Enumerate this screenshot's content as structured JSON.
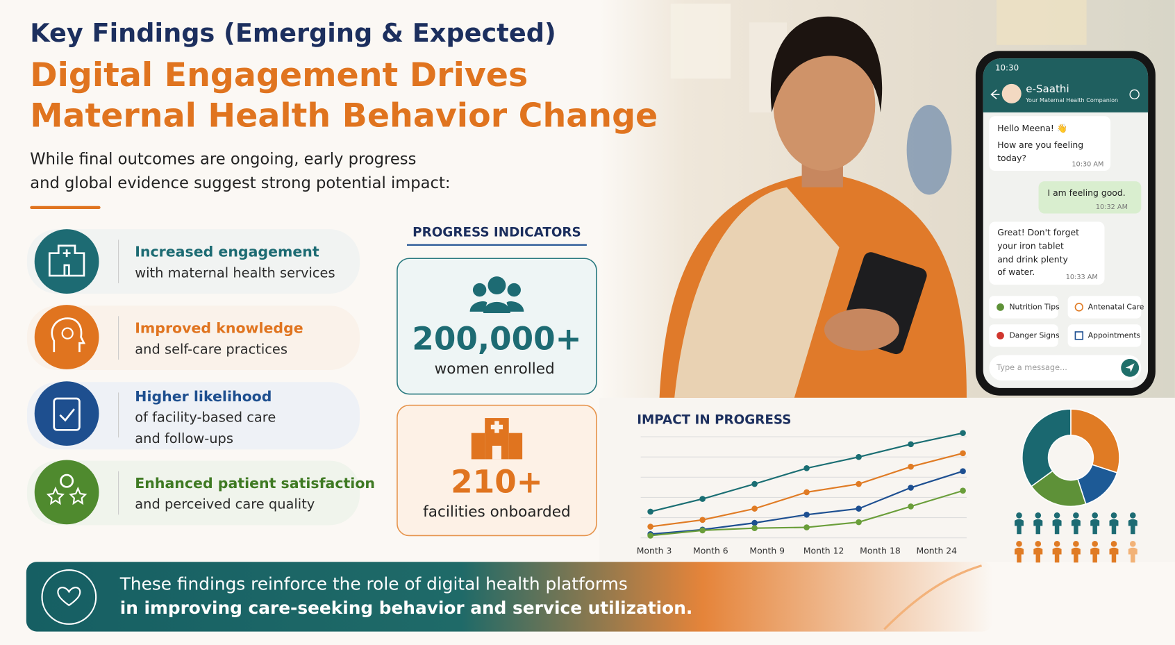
{
  "header": {
    "eyebrow": "Key Findings (Emerging & Expected)",
    "title_lines": [
      "Digital Engagement Drives",
      "Maternal Health Behavior Change"
    ],
    "intro_lines": [
      "While final outcomes are ongoing, early progress",
      "and global evidence suggest strong potential impact:"
    ]
  },
  "findings": [
    {
      "title": "Increased engagement",
      "lines": [
        "with maternal health services"
      ]
    },
    {
      "title": "Improved knowledge",
      "lines": [
        "and self-care practices"
      ]
    },
    {
      "title": "Higher likelihood",
      "lines": [
        "of facility-based care",
        "and follow-ups"
      ]
    },
    {
      "title": "Enhanced patient satisfaction",
      "lines": [
        "and perceived care quality"
      ]
    }
  ],
  "progress": {
    "title": "PROGRESS INDICATORS",
    "cards": [
      {
        "value": "200,000+",
        "label": "women enrolled"
      },
      {
        "value": "210+",
        "label": "facilities onboarded"
      }
    ]
  },
  "phone": {
    "time": "10:30",
    "app": "e-Saathi",
    "tagline": "Your Maternal Health Companion",
    "messages": [
      {
        "lines": [
          "Hello Meena! 👋",
          "How are you feeling",
          "today?"
        ],
        "time": "10:30 AM"
      },
      {
        "lines": [
          "I am feeling good."
        ],
        "time": "10:32 AM"
      },
      {
        "lines": [
          "Great! Don't forget",
          "your iron tablet",
          "and drink plenty",
          "of water."
        ],
        "time": "10:33 AM"
      }
    ],
    "quick_replies": [
      "Nutrition Tips",
      "Antenatal Care",
      "Danger Signs",
      "Appointments"
    ],
    "input_placeholder": "Type a message..."
  },
  "chart_data": [
    {
      "type": "line",
      "title": "IMPACT IN PROGRESS",
      "categories": [
        "Month 3",
        "Month 6",
        "Month 9",
        "Month 12",
        "Month 18",
        "Month 24",
        null
      ],
      "ylim": [
        0,
        150
      ],
      "series": [
        {
          "color": "#1a6e73",
          "values": [
            37,
            54,
            74,
            95,
            110,
            127,
            142
          ]
        },
        {
          "color": "#e07b24",
          "values": [
            17,
            26,
            41,
            63,
            74,
            97,
            115
          ]
        },
        {
          "color": "#1d4f91",
          "values": [
            7,
            13,
            22,
            33,
            41,
            69,
            91
          ]
        },
        {
          "color": "#6a9e3a",
          "values": [
            5,
            12,
            15,
            16,
            23,
            44,
            65
          ]
        }
      ]
    },
    {
      "type": "pie",
      "values": [
        30,
        15,
        20,
        35
      ],
      "colors": [
        "#e07b24",
        "#1d5a96",
        "#5e9138",
        "#1a6870"
      ]
    }
  ],
  "footer": {
    "lines": [
      "These findings reinforce the role of digital health platforms",
      "in improving care-seeking behavior and service utilization."
    ]
  }
}
